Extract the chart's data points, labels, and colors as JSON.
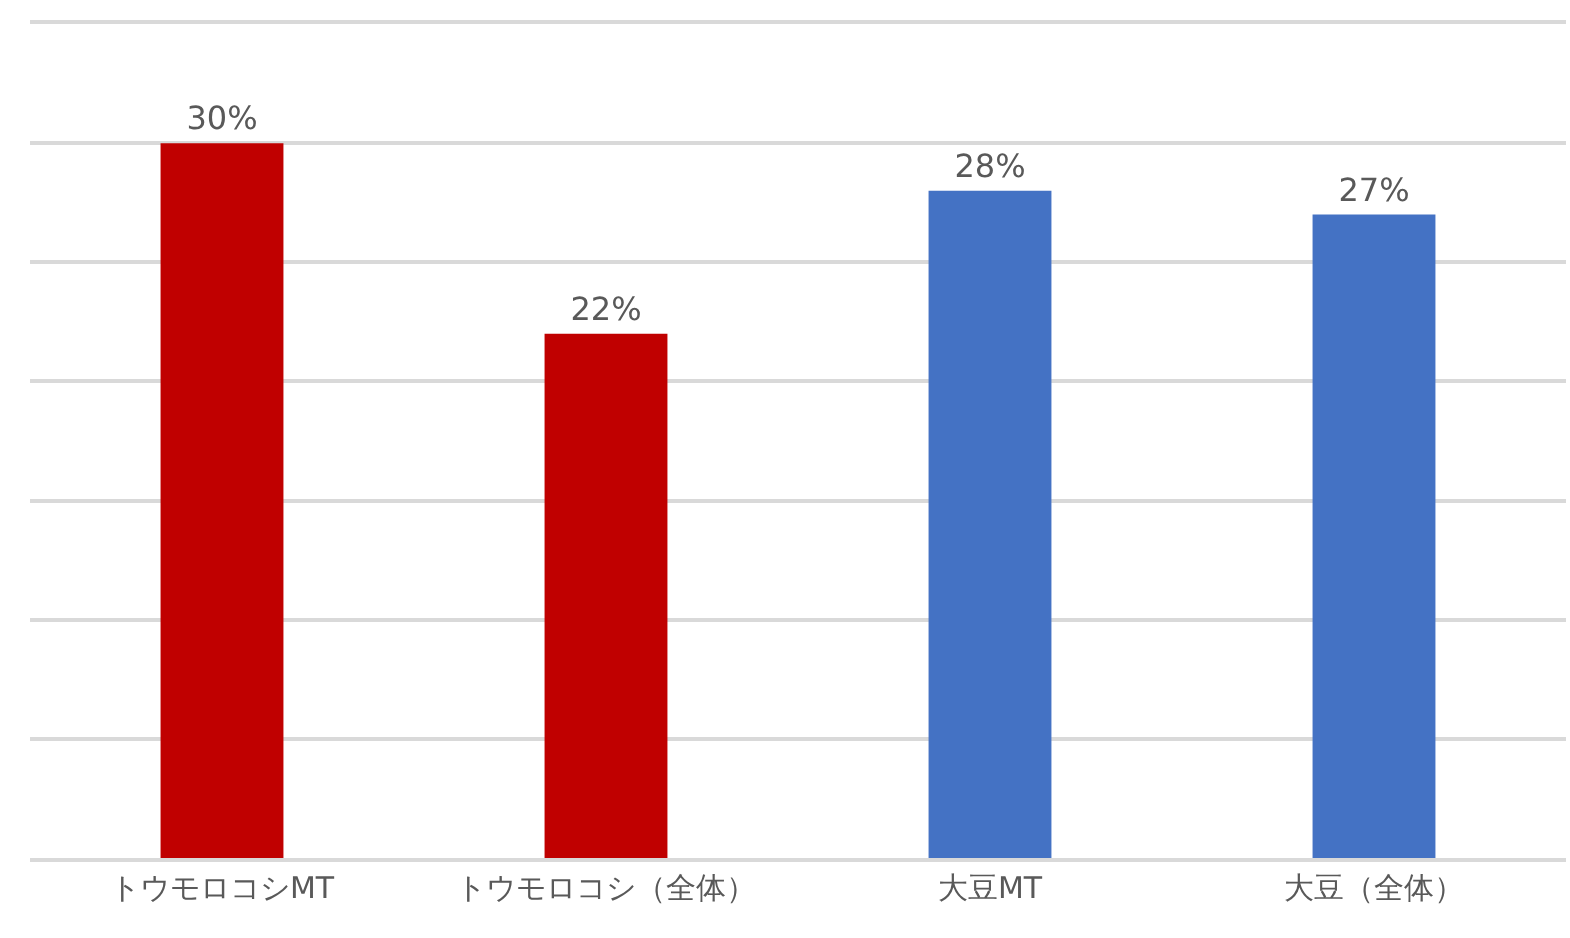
{
  "chart_data": {
    "type": "bar",
    "categories": [
      "トウモロコシMT",
      "トウモロコシ（全体）",
      "大豆MT",
      "大豆（全体）"
    ],
    "values": [
      30,
      22,
      28,
      27
    ],
    "colors": [
      "#c00000",
      "#c00000",
      "#4472c4",
      "#4472c4"
    ],
    "value_labels": [
      "30%",
      "22%",
      "28%",
      "27%"
    ],
    "ylim": [
      0,
      35
    ],
    "yticks": [
      {
        "value": 0,
        "label": null
      },
      {
        "value": 5,
        "label": null
      },
      {
        "value": 10,
        "label": null
      },
      {
        "value": 15,
        "label": null
      },
      {
        "value": 20,
        "label": null
      },
      {
        "value": 25,
        "label": null
      },
      {
        "value": 30,
        "label": null
      },
      {
        "value": 35,
        "label": null
      }
    ],
    "grid": "y",
    "tick_labels": "x"
  }
}
